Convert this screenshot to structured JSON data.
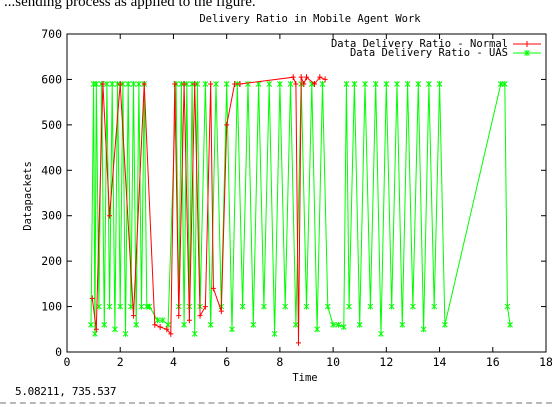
{
  "caption": "...sending process as applied to the figure.",
  "coordinate_readout": "5.08211,  735.537",
  "colors": {
    "normal": "#ff0000",
    "uas": "#00ff00",
    "axes": "#000000"
  },
  "chart_data": {
    "type": "line",
    "title": "Delivery Ratio in Mobile Agent Work",
    "xlabel": "Time",
    "ylabel": "Datapackets",
    "xlim": [
      0,
      18
    ],
    "ylim": [
      0,
      700
    ],
    "xticks": [
      0,
      2,
      4,
      6,
      8,
      10,
      12,
      14,
      16,
      18
    ],
    "yticks": [
      0,
      100,
      200,
      300,
      400,
      500,
      600,
      700
    ],
    "grid": false,
    "legend_position": "top-right",
    "series": [
      {
        "name": "Data Delivery Ratio - Normal",
        "color": "#ff0000",
        "x": [
          0.95,
          1.1,
          1.35,
          1.6,
          2.0,
          2.5,
          2.9,
          3.3,
          3.5,
          3.75,
          3.9,
          4.05,
          4.2,
          4.4,
          4.6,
          4.8,
          5.0,
          5.2,
          5.4,
          5.5,
          5.8,
          6.0,
          6.3,
          6.5,
          8.5,
          8.6,
          8.7,
          8.8,
          8.9,
          9.0,
          9.3,
          9.5,
          9.7
        ],
        "y": [
          118,
          50,
          590,
          300,
          590,
          80,
          590,
          60,
          55,
          50,
          40,
          590,
          80,
          590,
          70,
          590,
          80,
          100,
          590,
          140,
          90,
          500,
          590,
          590,
          605,
          590,
          20,
          605,
          590,
          605,
          590,
          605,
          600
        ]
      },
      {
        "name": "Data Delivery Ratio - UAS",
        "color": "#00ff00",
        "x": [
          0.9,
          1.0,
          1.05,
          1.1,
          1.2,
          1.3,
          1.4,
          1.5,
          1.6,
          1.7,
          1.8,
          1.9,
          2.0,
          2.1,
          2.2,
          2.3,
          2.4,
          2.5,
          2.6,
          2.7,
          2.8,
          2.9,
          3.0,
          3.1,
          3.4,
          3.6,
          3.8,
          4.1,
          4.2,
          4.3,
          4.4,
          4.5,
          4.6,
          4.7,
          4.8,
          4.9,
          5.0,
          5.2,
          5.4,
          5.6,
          5.8,
          6.0,
          6.2,
          6.4,
          6.6,
          6.8,
          7.0,
          7.2,
          7.4,
          7.6,
          7.8,
          8.0,
          8.2,
          8.4,
          8.6,
          8.8,
          9.0,
          9.2,
          9.4,
          9.6,
          9.8,
          10.0,
          10.2,
          10.4,
          10.5,
          10.6,
          10.8,
          11.0,
          11.2,
          11.4,
          11.6,
          11.8,
          12.0,
          12.2,
          12.4,
          12.6,
          12.8,
          13.0,
          13.2,
          13.4,
          13.6,
          13.8,
          14.0,
          14.2,
          16.3,
          16.45,
          16.55,
          16.65
        ],
        "y": [
          60,
          590,
          40,
          590,
          100,
          590,
          60,
          590,
          100,
          590,
          50,
          590,
          100,
          590,
          40,
          590,
          100,
          590,
          60,
          590,
          100,
          590,
          100,
          100,
          70,
          70,
          60,
          590,
          100,
          590,
          60,
          590,
          100,
          590,
          40,
          590,
          100,
          590,
          60,
          590,
          100,
          590,
          50,
          590,
          100,
          590,
          60,
          590,
          100,
          590,
          40,
          590,
          100,
          590,
          60,
          590,
          100,
          590,
          50,
          590,
          100,
          60,
          60,
          55,
          590,
          100,
          590,
          60,
          590,
          100,
          590,
          40,
          590,
          100,
          590,
          60,
          590,
          100,
          590,
          50,
          590,
          100,
          590,
          60,
          590,
          590,
          100,
          60
        ]
      }
    ]
  }
}
